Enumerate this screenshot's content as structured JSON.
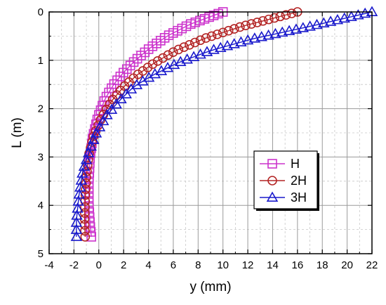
{
  "chart_data": {
    "type": "scatter",
    "xlabel": "y (mm)",
    "ylabel": "L (m)",
    "xlim": [
      -4,
      22
    ],
    "ylim": [
      0,
      5
    ],
    "y_axis_inverted": true,
    "x_axis_position": "bottom",
    "x_ticks": [
      "-4",
      "-2",
      "0",
      "2",
      "4",
      "6",
      "8",
      "10",
      "12",
      "14",
      "16",
      "18",
      "20",
      "22"
    ],
    "y_ticks": [
      "0",
      "1",
      "2",
      "3",
      "4",
      "5"
    ],
    "grid": true,
    "legend_position": "lower-right",
    "series": [
      {
        "name": "H",
        "marker": "square",
        "color": "#cc33cc",
        "x": [
          10.0,
          7.4,
          5.5,
          4.1,
          2.95,
          2.0,
          1.2,
          0.5,
          -0.1,
          -0.5,
          -0.7,
          -0.8,
          -0.8,
          -0.7,
          -0.6
        ],
        "y": [
          0.0,
          0.25,
          0.5,
          0.75,
          1.0,
          1.25,
          1.5,
          1.8,
          2.2,
          2.6,
          3.0,
          3.5,
          4.0,
          4.4,
          4.65
        ]
      },
      {
        "name": "2H",
        "marker": "circle",
        "color": "#b32424",
        "x": [
          16.0,
          11.5,
          8.5,
          6.2,
          4.5,
          3.1,
          2.0,
          1.0,
          0.2,
          -0.4,
          -0.8,
          -1.0,
          -1.1,
          -1.15,
          -1.1
        ],
        "y": [
          0.0,
          0.3,
          0.55,
          0.8,
          1.05,
          1.3,
          1.55,
          1.85,
          2.2,
          2.55,
          2.95,
          3.4,
          3.9,
          4.3,
          4.65
        ]
      },
      {
        "name": "3H",
        "marker": "triangle",
        "color": "#1a1acc",
        "x": [
          22.0,
          17.0,
          12.5,
          9.0,
          6.4,
          4.4,
          2.8,
          1.6,
          0.6,
          -0.2,
          -0.8,
          -1.3,
          -1.6,
          -1.8,
          -1.8
        ],
        "y": [
          0.0,
          0.3,
          0.55,
          0.8,
          1.05,
          1.3,
          1.55,
          1.85,
          2.15,
          2.5,
          2.9,
          3.3,
          3.8,
          4.3,
          4.65
        ]
      }
    ]
  }
}
